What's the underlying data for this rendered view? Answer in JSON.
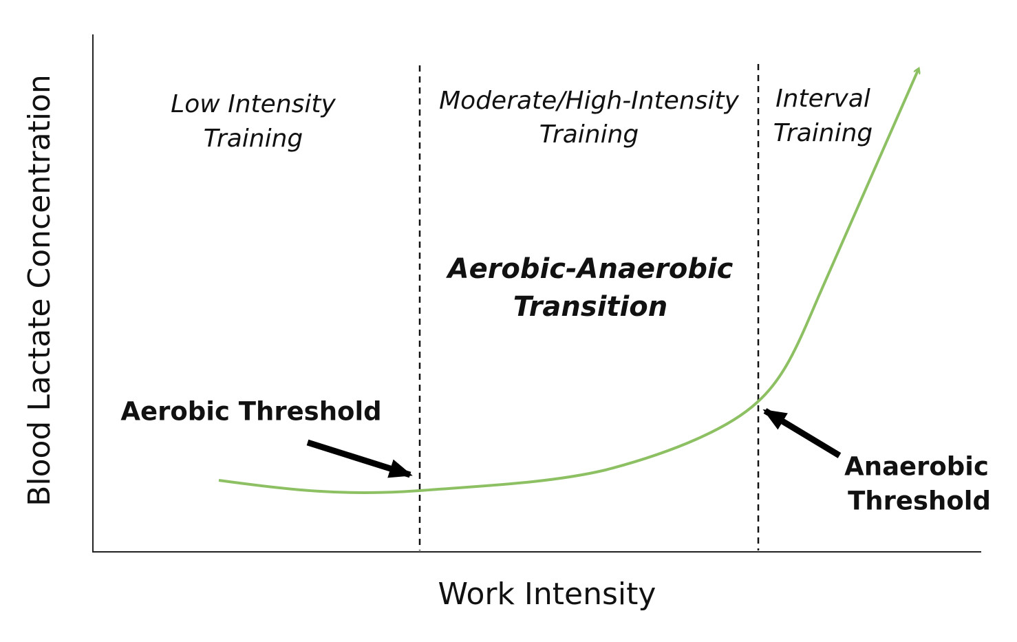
{
  "axes": {
    "y_label": "Blood Lactate Concentration",
    "x_label": "Work Intensity"
  },
  "zones": [
    {
      "lines": [
        "Low Intensity",
        "Training"
      ]
    },
    {
      "lines": [
        "Moderate/High-Intensity",
        "Training"
      ]
    },
    {
      "lines": [
        "Interval",
        "Training"
      ]
    }
  ],
  "center_label": {
    "lines": [
      "Aerobic-Anaerobic",
      "Transition"
    ]
  },
  "thresholds": [
    {
      "lines": [
        "Aerobic Threshold"
      ]
    },
    {
      "lines": [
        "Anaerobic",
        "Threshold"
      ]
    }
  ]
}
